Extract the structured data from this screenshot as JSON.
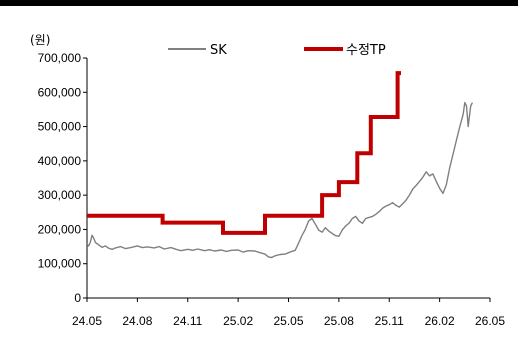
{
  "chart_data": {
    "type": "line",
    "unit_label": "(원)",
    "y_ticks": [
      "700,000",
      "600,000",
      "500,000",
      "400,000",
      "300,000",
      "200,000",
      "100,000",
      "0"
    ],
    "y_tick_values": [
      700000,
      600000,
      500000,
      400000,
      300000,
      200000,
      100000,
      0
    ],
    "x_ticks": [
      "24.05",
      "24.08",
      "24.11",
      "25.02",
      "25.05",
      "25.08",
      "25.11",
      "26.02",
      "26.05"
    ],
    "ylim": [
      0,
      700000
    ],
    "grid": false,
    "legend_position": "top",
    "series": [
      {
        "name": "SK",
        "color": "#808080",
        "points": [
          [
            0,
            158000
          ],
          [
            0.1,
            152000
          ],
          [
            0.2,
            163000
          ],
          [
            0.3,
            183000
          ],
          [
            0.4,
            175000
          ],
          [
            0.5,
            162000
          ],
          [
            0.7,
            155000
          ],
          [
            0.9,
            148000
          ],
          [
            1.1,
            152000
          ],
          [
            1.3,
            145000
          ],
          [
            1.5,
            142000
          ],
          [
            1.7,
            146000
          ],
          [
            2.0,
            150000
          ],
          [
            2.3,
            144000
          ],
          [
            2.6,
            147000
          ],
          [
            3.0,
            152000
          ],
          [
            3.3,
            147000
          ],
          [
            3.6,
            149000
          ],
          [
            4.0,
            146000
          ],
          [
            4.3,
            150000
          ],
          [
            4.6,
            143000
          ],
          [
            5.0,
            147000
          ],
          [
            5.3,
            142000
          ],
          [
            5.6,
            138000
          ],
          [
            6.0,
            142000
          ],
          [
            6.3,
            139000
          ],
          [
            6.6,
            143000
          ],
          [
            7.0,
            138000
          ],
          [
            7.3,
            141000
          ],
          [
            7.6,
            137000
          ],
          [
            8.0,
            140000
          ],
          [
            8.3,
            136000
          ],
          [
            8.6,
            139000
          ],
          [
            9.0,
            140000
          ],
          [
            9.3,
            134000
          ],
          [
            9.6,
            138000
          ],
          [
            10.0,
            137000
          ],
          [
            10.3,
            132000
          ],
          [
            10.6,
            128000
          ],
          [
            10.8,
            120000
          ],
          [
            11.0,
            118000
          ],
          [
            11.2,
            123000
          ],
          [
            11.5,
            127000
          ],
          [
            11.8,
            128000
          ],
          [
            12.0,
            132000
          ],
          [
            12.2,
            136000
          ],
          [
            12.4,
            139000
          ],
          [
            12.6,
            160000
          ],
          [
            12.8,
            182000
          ],
          [
            13.0,
            200000
          ],
          [
            13.2,
            225000
          ],
          [
            13.4,
            232000
          ],
          [
            13.6,
            215000
          ],
          [
            13.8,
            198000
          ],
          [
            14.0,
            192000
          ],
          [
            14.2,
            205000
          ],
          [
            14.4,
            195000
          ],
          [
            14.6,
            188000
          ],
          [
            14.8,
            182000
          ],
          [
            15.0,
            180000
          ],
          [
            15.2,
            198000
          ],
          [
            15.4,
            210000
          ],
          [
            15.6,
            218000
          ],
          [
            15.8,
            232000
          ],
          [
            16.0,
            238000
          ],
          [
            16.2,
            225000
          ],
          [
            16.4,
            218000
          ],
          [
            16.6,
            232000
          ],
          [
            16.8,
            235000
          ],
          [
            17.0,
            238000
          ],
          [
            17.2,
            244000
          ],
          [
            17.4,
            252000
          ],
          [
            17.6,
            262000
          ],
          [
            17.8,
            268000
          ],
          [
            18.0,
            272000
          ],
          [
            18.2,
            278000
          ],
          [
            18.4,
            270000
          ],
          [
            18.6,
            265000
          ],
          [
            18.8,
            275000
          ],
          [
            19.0,
            285000
          ],
          [
            19.2,
            300000
          ],
          [
            19.4,
            318000
          ],
          [
            19.6,
            328000
          ],
          [
            19.8,
            340000
          ],
          [
            20.0,
            352000
          ],
          [
            20.2,
            368000
          ],
          [
            20.4,
            356000
          ],
          [
            20.6,
            362000
          ],
          [
            20.8,
            340000
          ],
          [
            21.0,
            320000
          ],
          [
            21.2,
            305000
          ],
          [
            21.4,
            330000
          ],
          [
            21.6,
            380000
          ],
          [
            21.8,
            420000
          ],
          [
            22.0,
            460000
          ],
          [
            22.2,
            500000
          ],
          [
            22.4,
            535000
          ],
          [
            22.5,
            570000
          ],
          [
            22.6,
            560000
          ],
          [
            22.7,
            500000
          ],
          [
            22.75,
            520000
          ],
          [
            22.85,
            560000
          ],
          [
            22.95,
            570000
          ]
        ]
      },
      {
        "name": "수정TP",
        "color": "#c00000",
        "points": [
          [
            0,
            240000
          ],
          [
            4.5,
            240000
          ],
          [
            4.5,
            220000
          ],
          [
            8.1,
            220000
          ],
          [
            8.1,
            190000
          ],
          [
            10.6,
            190000
          ],
          [
            10.6,
            240000
          ],
          [
            14.0,
            240000
          ],
          [
            14.0,
            300000
          ],
          [
            15.0,
            300000
          ],
          [
            15.0,
            338000
          ],
          [
            16.1,
            338000
          ],
          [
            16.1,
            422000
          ],
          [
            16.9,
            422000
          ],
          [
            16.9,
            528000
          ],
          [
            18.5,
            528000
          ],
          [
            18.5,
            656000
          ],
          [
            18.7,
            656000
          ]
        ]
      }
    ]
  }
}
